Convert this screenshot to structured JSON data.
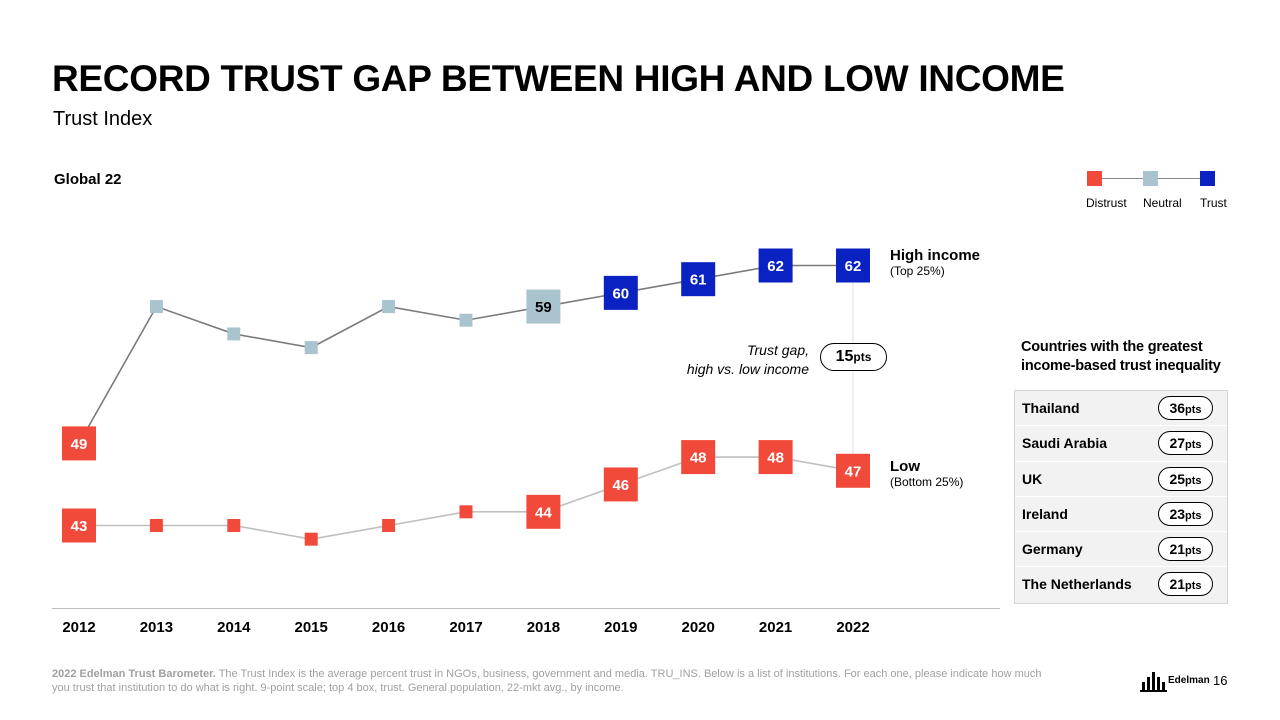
{
  "header": {
    "title": "RECORD TRUST GAP BETWEEN HIGH AND LOW INCOME",
    "subtitle": "Trust Index",
    "region": "Global 22"
  },
  "legend": {
    "items": [
      {
        "label": "Distrust",
        "color": "#f24a3a"
      },
      {
        "label": "Neutral",
        "color": "#a9c4cf"
      },
      {
        "label": "Trust",
        "color": "#0a22c2"
      }
    ]
  },
  "colors": {
    "distrust": "#f24a3a",
    "neutral": "#a9c4cf",
    "trust": "#0a22c2",
    "high_line": "#7b7b7b",
    "low_line": "#bfbfbf"
  },
  "chart_data": {
    "type": "line",
    "x": [
      "2012",
      "2013",
      "2014",
      "2015",
      "2016",
      "2017",
      "2018",
      "2019",
      "2020",
      "2021",
      "2022"
    ],
    "ylim": [
      40,
      65
    ],
    "series": [
      {
        "name": "High income",
        "values": [
          49,
          59,
          57,
          56,
          59,
          58,
          59,
          60,
          61,
          62,
          62
        ],
        "levels": [
          "distrust",
          "neutral",
          "neutral",
          "neutral",
          "neutral",
          "neutral",
          "neutral",
          "trust",
          "trust",
          "trust",
          "trust"
        ],
        "labeled": [
          true,
          false,
          false,
          false,
          false,
          false,
          true,
          true,
          true,
          true,
          true
        ]
      },
      {
        "name": "Low",
        "values": [
          43,
          43,
          43,
          42,
          43,
          44,
          44,
          46,
          48,
          48,
          47
        ],
        "levels": [
          "distrust",
          "distrust",
          "distrust",
          "distrust",
          "distrust",
          "distrust",
          "distrust",
          "distrust",
          "distrust",
          "distrust",
          "distrust"
        ],
        "labeled": [
          true,
          false,
          false,
          false,
          false,
          false,
          true,
          true,
          true,
          true,
          true
        ]
      }
    ]
  },
  "series_labels": {
    "high": {
      "name": "High income",
      "note": "(Top 25%)"
    },
    "low": {
      "name": "Low",
      "note": "(Bottom 25%)"
    }
  },
  "gap": {
    "caption_line1": "Trust gap,",
    "caption_line2": "high vs. low income",
    "value": "15",
    "unit": "pts"
  },
  "countries": {
    "title_line1": "Countries with the greatest",
    "title_line2": "income-based trust inequality",
    "rows": [
      {
        "name": "Thailand",
        "value": "36",
        "unit": "pts"
      },
      {
        "name": "Saudi Arabia",
        "value": "27",
        "unit": "pts"
      },
      {
        "name": "UK",
        "value": "25",
        "unit": "pts"
      },
      {
        "name": "Ireland",
        "value": "23",
        "unit": "pts"
      },
      {
        "name": "Germany",
        "value": "21",
        "unit": "pts"
      },
      {
        "name": "The Netherlands",
        "value": "21",
        "unit": "pts"
      }
    ]
  },
  "footer": {
    "source_bold": "2022 Edelman Trust Barometer.",
    "source_text": " The Trust Index is the average percent trust in NGOs, business, government and media. TRU_INS. Below is a list of institutions. For each one, please indicate how much you trust that institution to do what is right. 9-point scale; top 4 box, trust. General population, 22-mkt avg., by income.",
    "brand": "Edelman",
    "page_number": "16"
  }
}
